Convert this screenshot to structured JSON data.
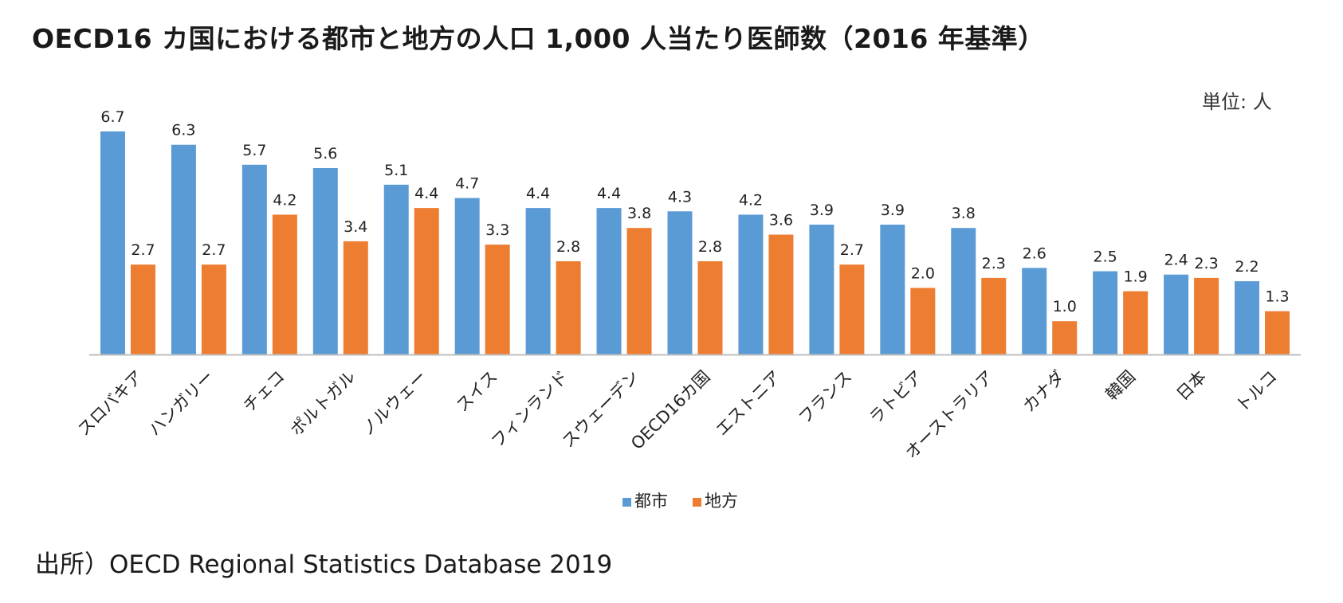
{
  "title": "OECD16 カ国における都市と地方の人口 1,000 人当たり医師数（2016 年基準）",
  "unit_label": "単位: 人",
  "source": "出所）OECD Regional Statistics Database 2019",
  "colors": {
    "urban": "#5b9bd5",
    "rural": "#ed7d31",
    "axis": "#bfbfbf"
  },
  "chart_data": {
    "type": "bar",
    "title": "OECD16 カ国における都市と地方の人口 1,000 人当たり医師数（2016 年基準）",
    "categories": [
      "スロバキア",
      "ハンガリー",
      "チェコ",
      "ポルトガル",
      "ノルウェー",
      "スイス",
      "フィンランド",
      "スウェーデン",
      "OECD16カ国",
      "エストニア",
      "フランス",
      "ラトビア",
      "オーストラリア",
      "カナダ",
      "韓国",
      "日本",
      "トルコ"
    ],
    "series": [
      {
        "name": "都市",
        "values": [
          6.7,
          6.3,
          5.7,
          5.6,
          5.1,
          4.7,
          4.4,
          4.4,
          4.3,
          4.2,
          3.9,
          3.9,
          3.8,
          2.6,
          2.5,
          2.4,
          2.2
        ]
      },
      {
        "name": "地方",
        "values": [
          2.7,
          2.7,
          4.2,
          3.4,
          4.4,
          3.3,
          2.8,
          3.8,
          2.8,
          3.6,
          2.7,
          2.0,
          2.3,
          1.0,
          1.9,
          2.3,
          1.3
        ]
      }
    ],
    "ylim": [
      0,
      7
    ],
    "grid": false,
    "legend": "bottom-center",
    "data_labels": true
  }
}
